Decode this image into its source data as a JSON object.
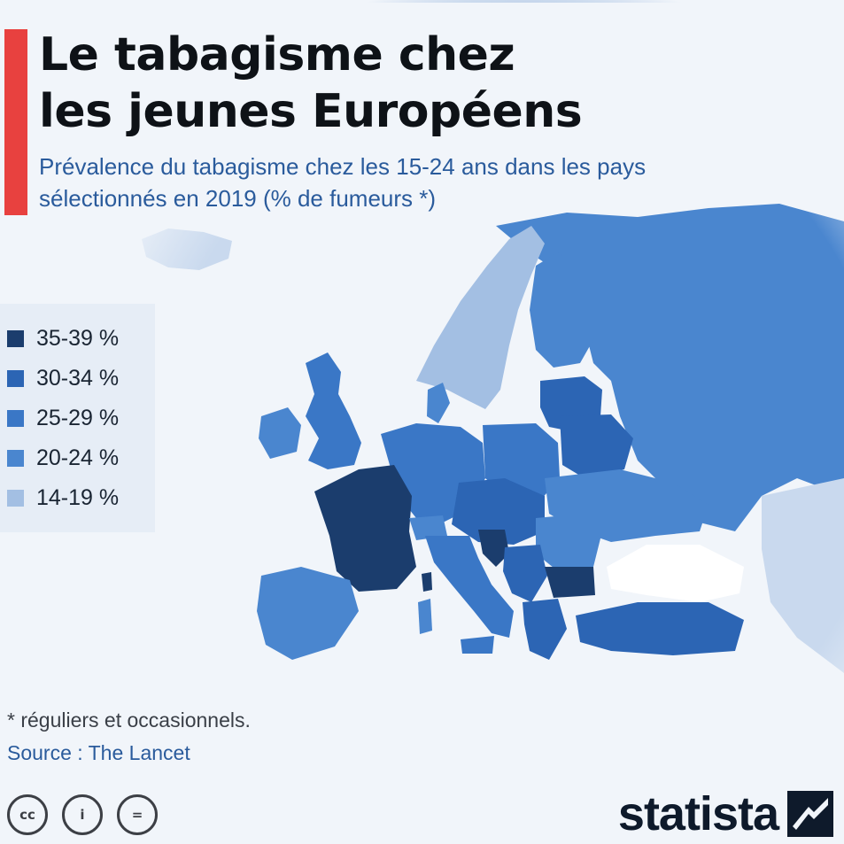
{
  "header": {
    "title_line1": "Le tabagisme chez",
    "title_line2": "les jeunes Européens",
    "subtitle_line1": "Prévalence du tabagisme chez les 15-24 ans dans les pays",
    "subtitle_line2": "sélectionnés en 2019 (% de fumeurs *)"
  },
  "legend": {
    "items": [
      {
        "label": "35-39 %",
        "color": "#1b3d6d"
      },
      {
        "label": "30-34 %",
        "color": "#2c65b4"
      },
      {
        "label": "25-29 %",
        "color": "#3a77c6"
      },
      {
        "label": "20-24 %",
        "color": "#4a86cf"
      },
      {
        "label": "14-19 %",
        "color": "#a3bfe3"
      }
    ]
  },
  "footer": {
    "footnote": "* réguliers et occasionnels.",
    "source": "Source : The Lancet",
    "license_icons": [
      "cc-icon",
      "by-icon",
      "nd-icon"
    ],
    "license_labels": [
      "cc",
      "i",
      "="
    ],
    "brand": "statista"
  },
  "map": {
    "base_land_color": "#4f88d0",
    "sea_color": "#ffffff",
    "no_data_color": "#c9d9ee"
  }
}
